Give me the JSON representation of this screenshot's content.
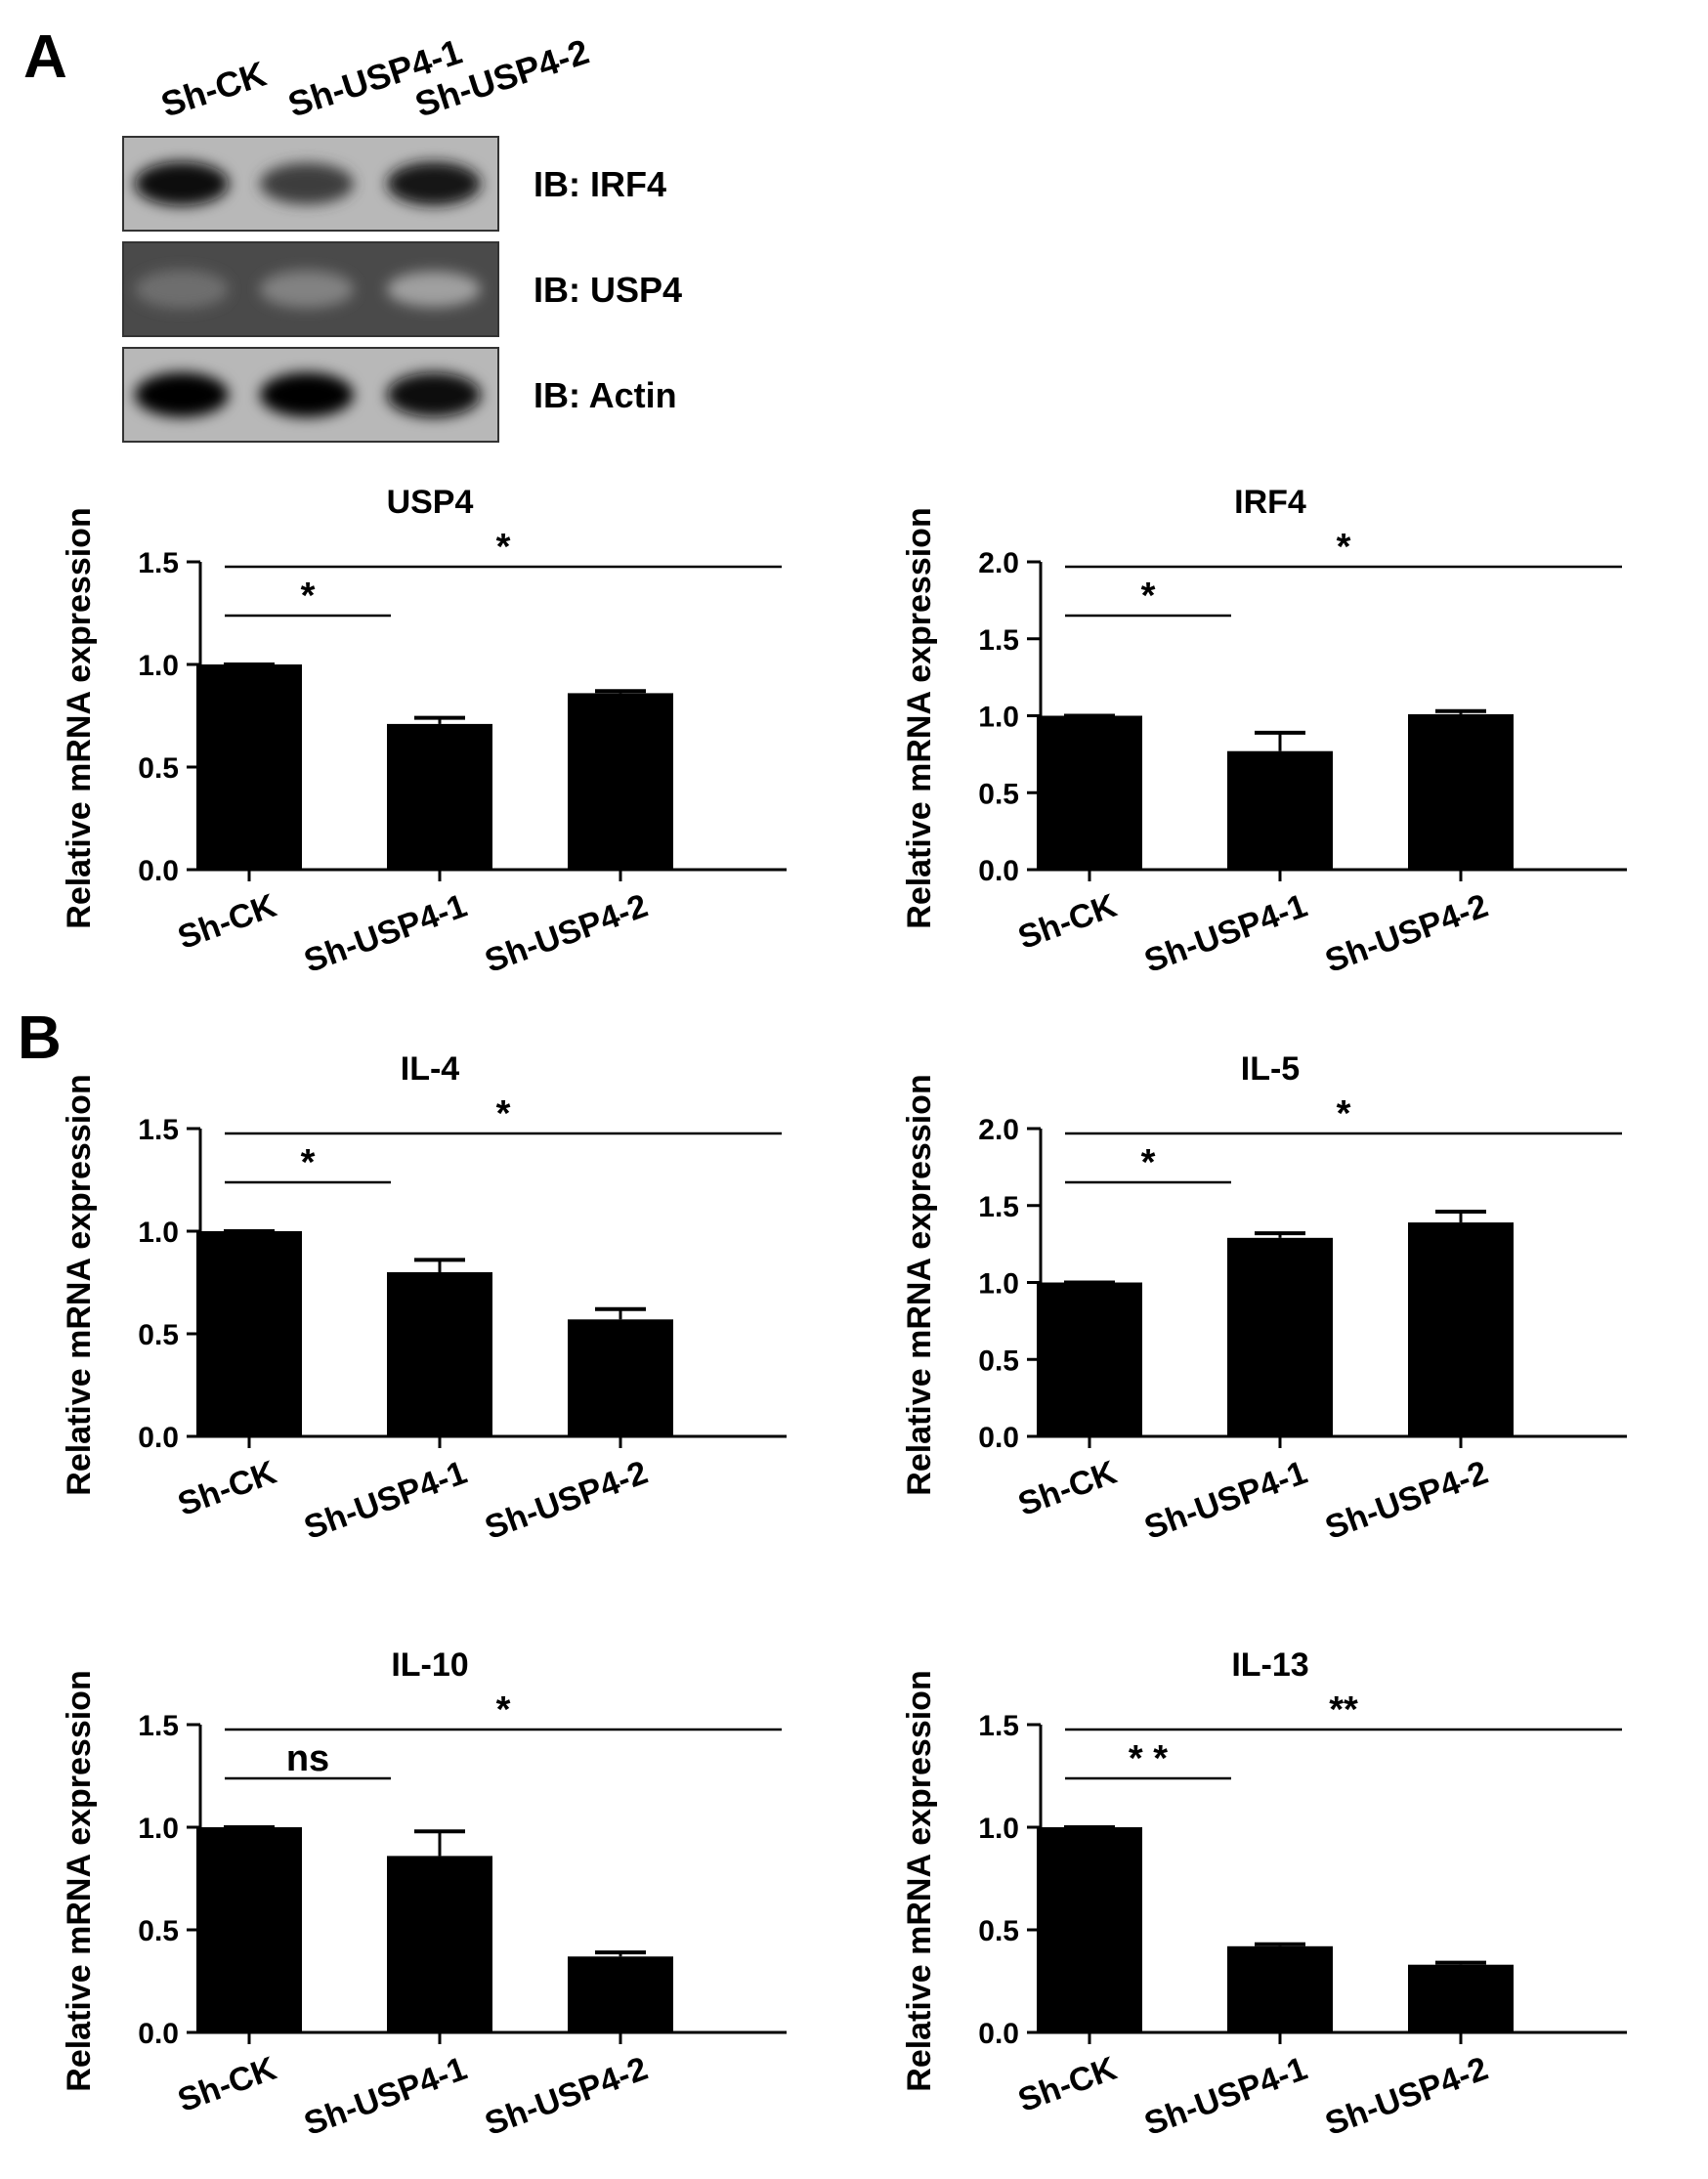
{
  "panels": {
    "a": "A",
    "b": "B"
  },
  "western_blot": {
    "lanes": [
      "Sh-CK",
      "Sh-USP4-1",
      "Sh-USP4-2"
    ],
    "rows": [
      {
        "label": "IB: IRF4",
        "intensity": [
          0.92,
          0.7,
          0.88
        ]
      },
      {
        "label": "IB: USP4",
        "intensity": [
          0.45,
          0.35,
          0.2
        ]
      },
      {
        "label": "IB: Actin",
        "intensity": [
          0.98,
          0.98,
          0.96
        ]
      }
    ]
  },
  "chart_data": [
    {
      "type": "bar",
      "title": "USP4",
      "ylabel": "Relative mRNA expression",
      "xlabel": "",
      "categories": [
        "Sh-CK",
        "Sh-USP4-1",
        "Sh-USP4-2"
      ],
      "values": [
        1.0,
        0.71,
        0.86
      ],
      "errors": [
        0.0,
        0.03,
        0.01
      ],
      "ylim": [
        0,
        1.5
      ],
      "yticks": [
        "0.0",
        "0.5",
        "1.0",
        "1.5"
      ],
      "comparisons": [
        {
          "from": 0,
          "to": 1,
          "label": "*",
          "level": 1
        },
        {
          "from": 0,
          "to": 2,
          "label": "*",
          "level": 2
        }
      ]
    },
    {
      "type": "bar",
      "title": "IRF4",
      "ylabel": "Relative mRNA expression",
      "xlabel": "",
      "categories": [
        "Sh-CK",
        "Sh-USP4-1",
        "Sh-USP4-2"
      ],
      "values": [
        1.0,
        0.77,
        1.01
      ],
      "errors": [
        0.0,
        0.12,
        0.02
      ],
      "ylim": [
        0,
        2.0
      ],
      "yticks": [
        "0.0",
        "0.5",
        "1.0",
        "1.5",
        "2.0"
      ],
      "comparisons": [
        {
          "from": 0,
          "to": 1,
          "label": "*",
          "level": 1
        },
        {
          "from": 0,
          "to": 2,
          "label": "*",
          "level": 2
        }
      ]
    },
    {
      "type": "bar",
      "title": "IL-4",
      "ylabel": "Relative mRNA expression",
      "xlabel": "",
      "categories": [
        "Sh-CK",
        "Sh-USP4-1",
        "Sh-USP4-2"
      ],
      "values": [
        1.0,
        0.8,
        0.57
      ],
      "errors": [
        0.0,
        0.06,
        0.05
      ],
      "ylim": [
        0,
        1.5
      ],
      "yticks": [
        "0.0",
        "0.5",
        "1.0",
        "1.5"
      ],
      "comparisons": [
        {
          "from": 0,
          "to": 1,
          "label": "*",
          "level": 1
        },
        {
          "from": 0,
          "to": 2,
          "label": "*",
          "level": 2
        }
      ]
    },
    {
      "type": "bar",
      "title": "IL-5",
      "ylabel": "Relative mRNA expression",
      "xlabel": "",
      "categories": [
        "Sh-CK",
        "Sh-USP4-1",
        "Sh-USP4-2"
      ],
      "values": [
        1.0,
        1.29,
        1.39
      ],
      "errors": [
        0.0,
        0.03,
        0.07
      ],
      "ylim": [
        0,
        2.0
      ],
      "yticks": [
        "0.0",
        "0.5",
        "1.0",
        "1.5",
        "2.0"
      ],
      "comparisons": [
        {
          "from": 0,
          "to": 1,
          "label": "*",
          "level": 1
        },
        {
          "from": 0,
          "to": 2,
          "label": "*",
          "level": 2
        }
      ]
    },
    {
      "type": "bar",
      "title": "IL-10",
      "ylabel": "Relative mRNA expression",
      "xlabel": "",
      "categories": [
        "Sh-CK",
        "Sh-USP4-1",
        "Sh-USP4-2"
      ],
      "values": [
        1.0,
        0.86,
        0.37
      ],
      "errors": [
        0.0,
        0.12,
        0.02
      ],
      "ylim": [
        0,
        1.5
      ],
      "yticks": [
        "0.0",
        "0.5",
        "1.0",
        "1.5"
      ],
      "comparisons": [
        {
          "from": 0,
          "to": 1,
          "label": "ns",
          "level": 1
        },
        {
          "from": 0,
          "to": 2,
          "label": "*",
          "level": 2
        }
      ]
    },
    {
      "type": "bar",
      "title": "IL-13",
      "ylabel": "Relative mRNA expression",
      "xlabel": "",
      "categories": [
        "Sh-CK",
        "Sh-USP4-1",
        "Sh-USP4-2"
      ],
      "values": [
        1.0,
        0.42,
        0.33
      ],
      "errors": [
        0.0,
        0.01,
        0.01
      ],
      "ylim": [
        0,
        1.5
      ],
      "yticks": [
        "0.0",
        "0.5",
        "1.0",
        "1.5"
      ],
      "comparisons": [
        {
          "from": 0,
          "to": 1,
          "label": "* *",
          "level": 1
        },
        {
          "from": 0,
          "to": 2,
          "label": "**",
          "level": 2
        }
      ]
    }
  ]
}
